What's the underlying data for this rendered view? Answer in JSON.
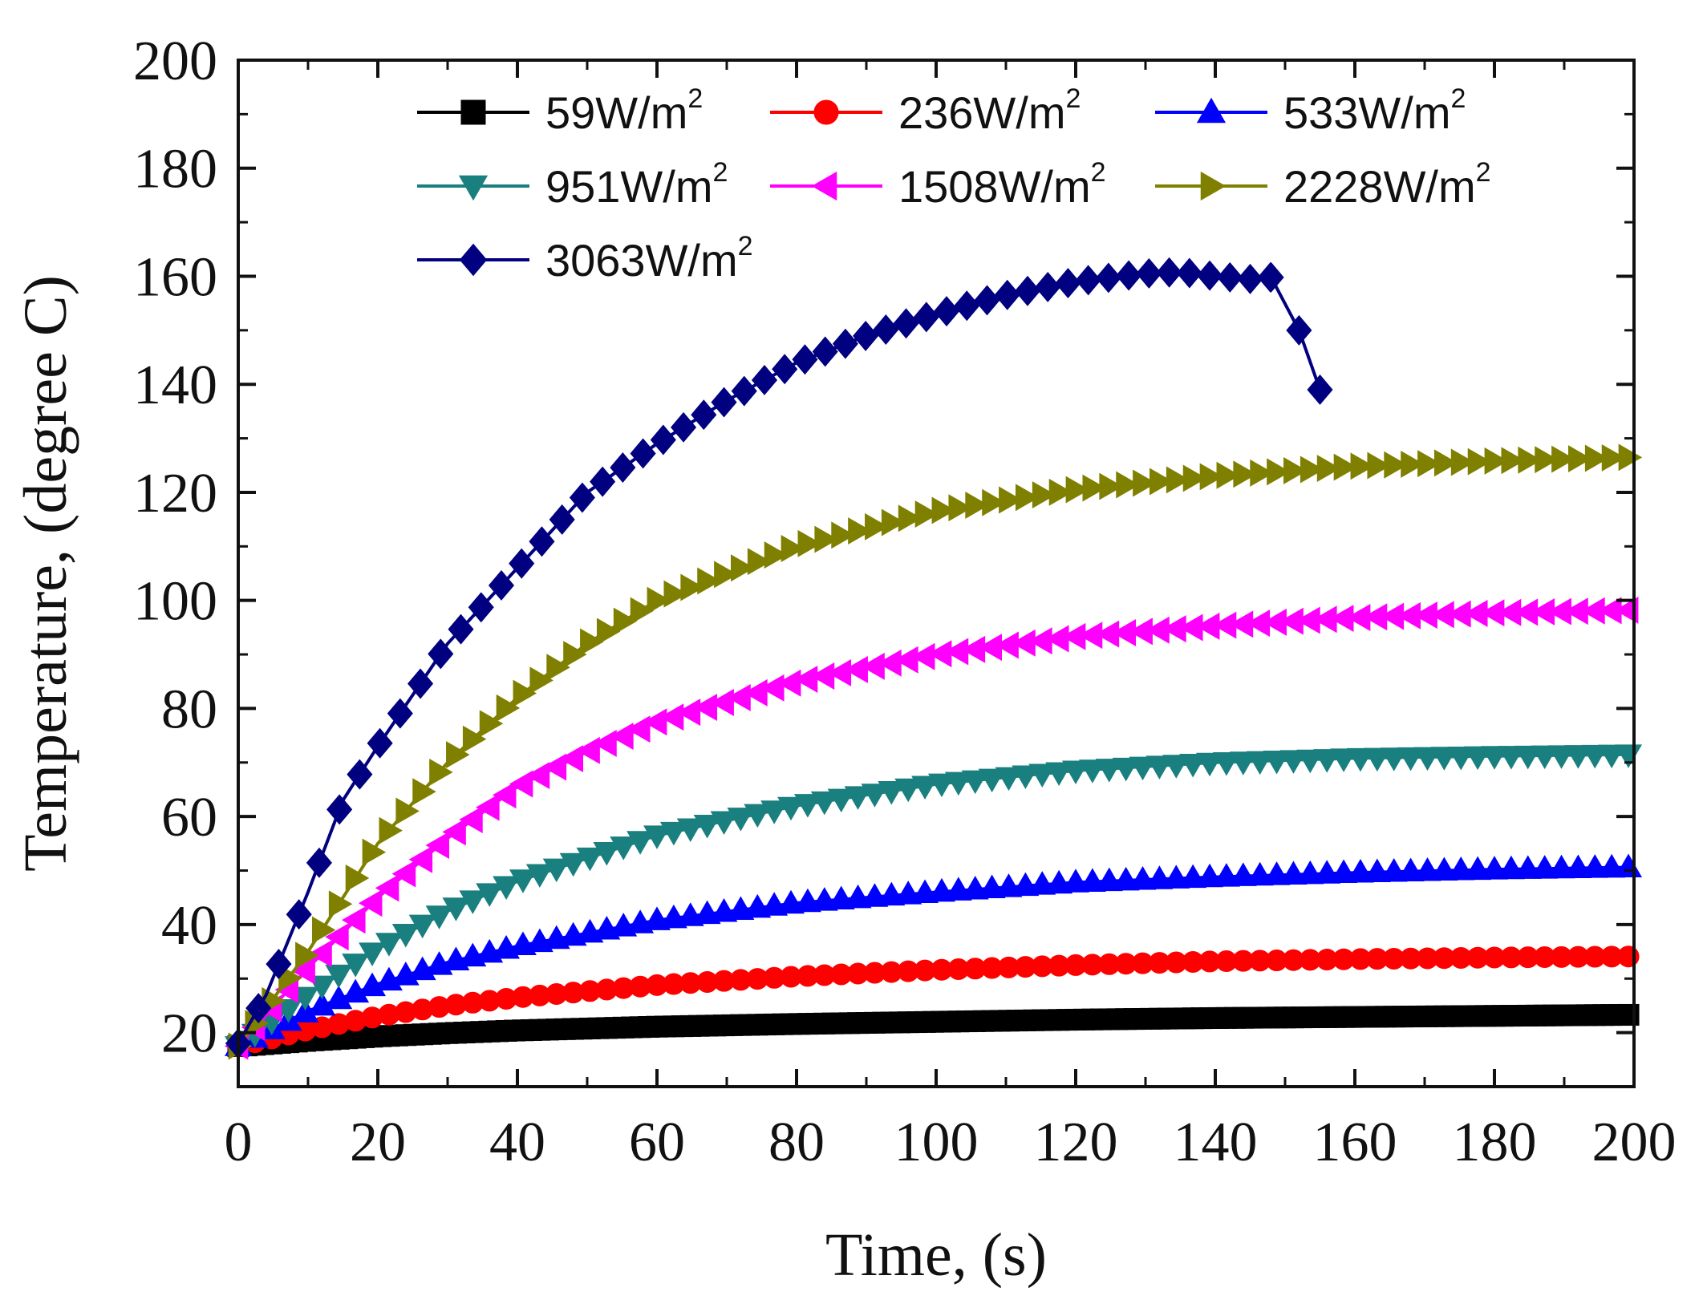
{
  "chart_data": {
    "type": "line",
    "title": "",
    "xlabel": "Time, (s)",
    "ylabel": "Temperature, (degree C)",
    "xlim": [
      0,
      200
    ],
    "ylim": [
      10,
      200
    ],
    "xticks": [
      "0",
      "20",
      "40",
      "60",
      "80",
      "100",
      "120",
      "140",
      "160",
      "180",
      "200"
    ],
    "yticks": [
      "20",
      "40",
      "60",
      "80",
      "100",
      "120",
      "140",
      "160",
      "180",
      "200"
    ],
    "grid": false,
    "legend_position": "top",
    "series": [
      {
        "name": "59W/m",
        "sup": "2",
        "color": "#000000",
        "marker": "square",
        "x": [
          0,
          10,
          20,
          30,
          40,
          60,
          80,
          100,
          120,
          140,
          160,
          180,
          200
        ],
        "y": [
          17.5,
          18.5,
          19.3,
          19.9,
          20.4,
          21.1,
          21.6,
          22.0,
          22.4,
          22.7,
          22.9,
          23.1,
          23.3
        ]
      },
      {
        "name": "236W/m",
        "sup": "2",
        "color": "#ff0000",
        "marker": "circle",
        "x": [
          0,
          10,
          20,
          30,
          40,
          60,
          80,
          100,
          120,
          140,
          160,
          180,
          200
        ],
        "y": [
          17.5,
          20.5,
          23.0,
          25.0,
          26.5,
          28.8,
          30.4,
          31.6,
          32.5,
          33.2,
          33.6,
          33.9,
          34.1
        ]
      },
      {
        "name": "533W/m",
        "sup": "2",
        "color": "#0000ff",
        "marker": "triangle-up",
        "x": [
          0,
          10,
          20,
          30,
          40,
          60,
          80,
          100,
          120,
          140,
          160,
          180,
          200
        ],
        "y": [
          17.5,
          24.0,
          29.0,
          33.0,
          36.0,
          40.8,
          44.0,
          46.0,
          47.8,
          48.8,
          49.6,
          50.2,
          50.6
        ]
      },
      {
        "name": "951W/m",
        "sup": "2",
        "color": "#1a7f7f",
        "marker": "triangle-down",
        "x": [
          0,
          10,
          20,
          30,
          40,
          60,
          80,
          100,
          120,
          140,
          160,
          180,
          200
        ],
        "y": [
          17.5,
          27.0,
          35.5,
          42.5,
          48.0,
          56.5,
          62.0,
          66.0,
          68.5,
          70.0,
          70.8,
          71.2,
          71.5
        ]
      },
      {
        "name": "1508W/m",
        "sup": "2",
        "color": "#ff00ff",
        "marker": "triangle-left",
        "x": [
          0,
          10,
          20,
          30,
          40,
          50,
          60,
          80,
          100,
          120,
          140,
          160,
          180,
          200
        ],
        "y": [
          17.5,
          32.0,
          45.0,
          56.0,
          65.5,
          72.0,
          77.5,
          85.0,
          90.0,
          93.3,
          95.3,
          96.8,
          97.7,
          98.2
        ]
      },
      {
        "name": "2228W/m",
        "sup": "2",
        "color": "#808000",
        "marker": "triangle-right",
        "x": [
          0,
          10,
          20,
          30,
          40,
          50,
          60,
          80,
          100,
          120,
          140,
          160,
          180,
          200
        ],
        "y": [
          17.5,
          35.0,
          55.0,
          70.0,
          82.0,
          92.0,
          100.0,
          110.0,
          116.5,
          120.5,
          123.0,
          124.8,
          125.8,
          126.5
        ]
      },
      {
        "name": "3063W/m",
        "sup": "2",
        "color": "#000080",
        "marker": "diamond",
        "x": [
          0,
          4,
          10,
          15,
          20,
          30,
          40,
          50,
          60,
          70,
          80,
          90,
          100,
          110,
          120,
          130,
          135,
          140,
          145,
          148,
          152,
          155
        ],
        "y": [
          18.0,
          27.0,
          46.0,
          63.0,
          73.0,
          92.0,
          106.0,
          120.0,
          129.0,
          137.0,
          144.0,
          149.0,
          153.0,
          156.5,
          159.0,
          160.5,
          160.8,
          160.0,
          159.5,
          159.8,
          150.0,
          139.0
        ]
      }
    ]
  }
}
